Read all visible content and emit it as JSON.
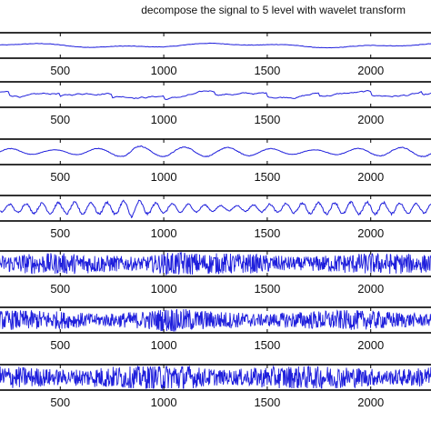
{
  "chart_data": {
    "type": "line",
    "title": "decompose the signal to 5 level with wavelet transform",
    "xlabel": "",
    "ylabel": "",
    "xlim": [
      200,
      2300
    ],
    "x_ticks": [
      500,
      1000,
      1500,
      2000
    ],
    "x_tick_labels": [
      "500",
      "1000",
      "1500",
      "2000"
    ],
    "grid": false,
    "line_color": "#1f1fdc",
    "panels": [
      {
        "name": "",
        "amplitude": 0.35,
        "freq": 0.006,
        "noise": 0.08,
        "style": "smooth"
      },
      {
        "name": "",
        "amplitude": 0.55,
        "freq": 0.004,
        "noise": 0.05,
        "style": "sawtooth"
      },
      {
        "name": "",
        "amplitude": 0.45,
        "freq": 0.03,
        "noise": 0.1,
        "style": "wavelet"
      },
      {
        "name": "",
        "amplitude": 0.55,
        "freq": 0.08,
        "noise": 0.25,
        "style": "wavelet"
      },
      {
        "name": "",
        "amplitude": 0.75,
        "freq": 0.3,
        "noise": 0.6,
        "style": "noise"
      },
      {
        "name": "",
        "amplitude": 0.7,
        "freq": 0.4,
        "noise": 0.6,
        "style": "noise"
      },
      {
        "name": "",
        "amplitude": 0.85,
        "freq": 0.5,
        "noise": 0.8,
        "style": "noise"
      }
    ]
  }
}
